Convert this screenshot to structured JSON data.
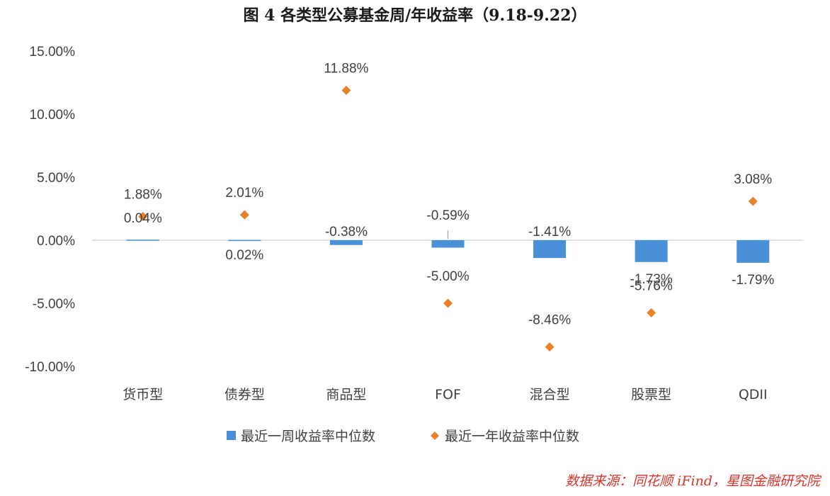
{
  "title": "图 4   各类型公募基金周/年收益率（9.18-9.22）",
  "source": "数据来源：同花顺 iFind，星图金融研究院",
  "colors": {
    "week": "#4a90d9",
    "year": "#e8822a",
    "axis": "#d9d9d9"
  },
  "chart_data": {
    "type": "bar",
    "categories": [
      "货币型",
      "债券型",
      "商品型",
      "FOF",
      "混合型",
      "股票型",
      "QDII"
    ],
    "series": [
      {
        "name": "最近一周收益率中位数",
        "kind": "bar",
        "values": [
          0.04,
          0.02,
          -0.38,
          -0.59,
          -1.41,
          -1.73,
          -1.79
        ],
        "labels": [
          "0.04%",
          "0.02%",
          "-0.38%",
          "-0.59%",
          "-1.41%",
          "-1.73%",
          "-1.79%"
        ]
      },
      {
        "name": "最近一年收益率中位数",
        "kind": "scatter",
        "values": [
          1.88,
          2.01,
          11.88,
          -5.0,
          -8.46,
          -5.76,
          3.08
        ],
        "labels": [
          "1.88%",
          "2.01%",
          "11.88%",
          "-5.00%",
          "-8.46%",
          "-5.76%",
          "3.08%"
        ]
      }
    ],
    "ylim": [
      -10,
      15
    ],
    "yticks": [
      15,
      10,
      5,
      0,
      -5,
      -10
    ],
    "ytick_labels": [
      "15.00%",
      "10.00%",
      "5.00%",
      "0.00%",
      "-5.00%",
      "-10.00%"
    ],
    "legend_position": "bottom",
    "grid": false
  }
}
